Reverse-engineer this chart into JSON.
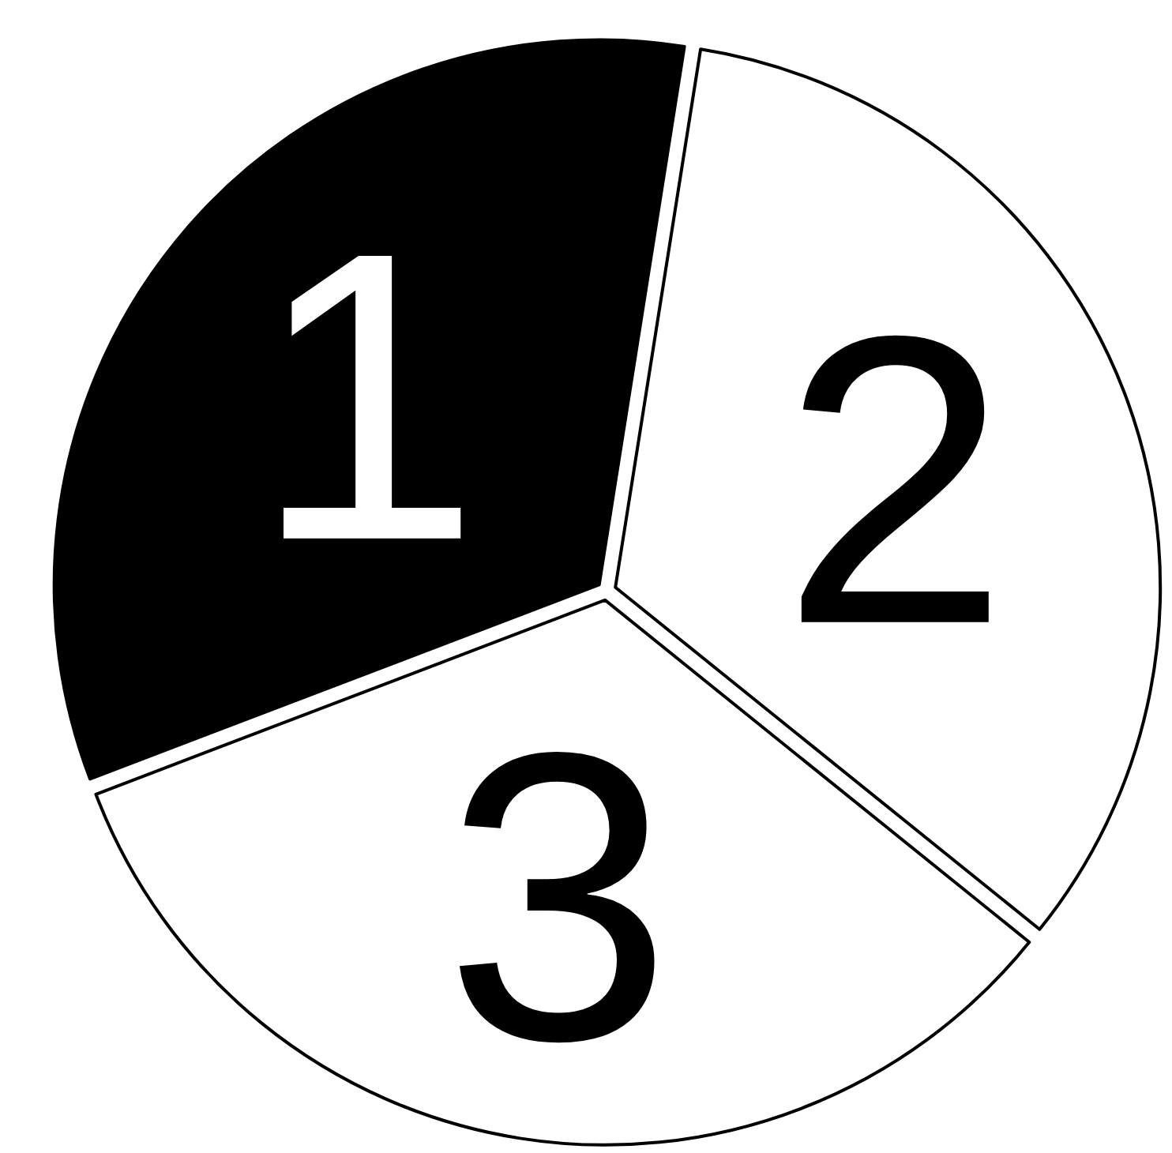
{
  "chart_data": {
    "type": "pie",
    "categories": [
      "2",
      "3",
      "1"
    ],
    "values": [
      33.3,
      33.4,
      33.3
    ],
    "colors": [
      "#ffffff",
      "#ffffff",
      "#000000"
    ],
    "data_labels": false,
    "legend": false
  }
}
